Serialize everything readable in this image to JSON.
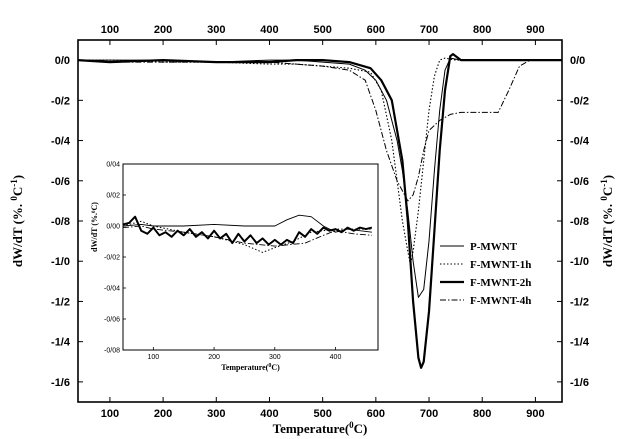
{
  "chart_data": [
    {
      "type": "line",
      "xlabel": "Temperature(",
      "xlabel_sup": "0",
      "xlabel_end": "C)",
      "ylabel": "dW/dT (%. ",
      "ylabel_sup1": "0",
      "ylabel_mid": "C",
      "ylabel_sup2": "-1",
      "ylabel_end": ")",
      "xlim": [
        40,
        950
      ],
      "ylim": [
        -1.7,
        0.1
      ],
      "x_ticks": [
        "100",
        "200",
        "300",
        "400",
        "500",
        "600",
        "700",
        "800",
        "900"
      ],
      "y_ticks": [
        "0/0",
        "-0/2",
        "-0/4",
        "-0/6",
        "-0/8",
        "-1/0",
        "-1/2",
        "-1/4",
        "-1/6"
      ],
      "legend_position": "right",
      "series": [
        {
          "name": "P-MWNT",
          "style": "thin",
          "x": [
            40,
            100,
            200,
            300,
            400,
            450,
            500,
            550,
            580,
            600,
            620,
            640,
            650,
            660,
            670,
            680,
            690,
            700,
            710,
            720,
            730,
            740,
            760,
            800,
            900,
            950
          ],
          "y": [
            0.0,
            0.0,
            0.0,
            -0.01,
            0.0,
            0.0,
            -0.01,
            -0.02,
            -0.05,
            -0.1,
            -0.2,
            -0.4,
            -0.55,
            -0.75,
            -1.0,
            -1.18,
            -1.14,
            -0.9,
            -0.55,
            -0.25,
            -0.05,
            0.01,
            0.0,
            0.0,
            0.0,
            0.0
          ]
        },
        {
          "name": "F-MWNT-1h",
          "style": "dotted",
          "x": [
            40,
            100,
            200,
            300,
            400,
            450,
            500,
            550,
            590,
            610,
            630,
            640,
            650,
            660,
            665,
            670,
            680,
            690,
            700,
            710,
            720,
            730,
            750,
            800,
            900,
            950
          ],
          "y": [
            0.0,
            0.0,
            -0.01,
            -0.01,
            -0.02,
            -0.02,
            -0.03,
            -0.04,
            -0.06,
            -0.15,
            -0.4,
            -0.6,
            -0.8,
            -0.95,
            -1.02,
            -0.95,
            -0.75,
            -0.5,
            -0.25,
            -0.08,
            0.0,
            0.01,
            0.0,
            0.0,
            0.0,
            0.0
          ]
        },
        {
          "name": "F-MWNT-2h",
          "style": "thick",
          "x": [
            40,
            100,
            200,
            300,
            400,
            450,
            500,
            550,
            590,
            610,
            630,
            650,
            660,
            670,
            680,
            685,
            690,
            700,
            710,
            720,
            730,
            740,
            745,
            760,
            800,
            900,
            950
          ],
          "y": [
            0.0,
            -0.01,
            0.0,
            -0.01,
            -0.01,
            0.0,
            0.0,
            -0.01,
            -0.04,
            -0.1,
            -0.2,
            -0.5,
            -0.8,
            -1.2,
            -1.48,
            -1.53,
            -1.5,
            -1.25,
            -0.85,
            -0.45,
            -0.15,
            0.02,
            0.03,
            0.0,
            0.0,
            0.0,
            0.0
          ]
        },
        {
          "name": "F-MWNT-4h",
          "style": "dashdot",
          "x": [
            40,
            100,
            200,
            300,
            400,
            450,
            500,
            550,
            580,
            600,
            620,
            640,
            660,
            670,
            680,
            690,
            700,
            720,
            740,
            760,
            800,
            830,
            850,
            870,
            890,
            910,
            950
          ],
          "y": [
            0.0,
            -0.01,
            -0.01,
            -0.01,
            -0.01,
            -0.02,
            -0.03,
            -0.05,
            -0.1,
            -0.25,
            -0.45,
            -0.6,
            -0.7,
            -0.67,
            -0.58,
            -0.45,
            -0.35,
            -0.3,
            -0.27,
            -0.26,
            -0.26,
            -0.26,
            -0.15,
            -0.03,
            0.0,
            0.0,
            0.0
          ]
        }
      ]
    },
    {
      "type": "line",
      "xlabel": "Temperature(",
      "xlabel_sup": "0",
      "xlabel_end": "C)",
      "ylabel": "dW/dT (%.",
      "ylabel_sup1": "0",
      "ylabel_mid": "C",
      "ylabel_end": ")",
      "xlim": [
        50,
        470
      ],
      "ylim": [
        -0.08,
        0.04
      ],
      "x_ticks": [
        "100",
        "200",
        "300",
        "400"
      ],
      "y_ticks": [
        "0/04",
        "0/02",
        "0/00",
        "-0/02",
        "-0/04",
        "-0/06",
        "-0/08"
      ],
      "series": [
        {
          "style": "thin",
          "x": [
            50,
            80,
            100,
            150,
            200,
            250,
            300,
            320,
            340,
            360,
            380,
            400,
            420,
            440,
            460
          ],
          "y": [
            0.0,
            0.001,
            0.0,
            0.0,
            0.001,
            0.0,
            0.0,
            0.004,
            0.007,
            0.006,
            0.0,
            -0.004,
            -0.002,
            -0.003,
            -0.004
          ]
        },
        {
          "style": "dotted",
          "x": [
            50,
            80,
            100,
            150,
            200,
            250,
            280,
            300,
            330,
            360,
            400,
            440,
            460
          ],
          "y": [
            0.0,
            0.003,
            0.0,
            -0.004,
            -0.007,
            -0.012,
            -0.017,
            -0.014,
            -0.01,
            -0.004,
            -0.002,
            -0.002,
            -0.002
          ]
        },
        {
          "style": "thick",
          "x": [
            50,
            60,
            70,
            80,
            90,
            100,
            110,
            120,
            130,
            140,
            150,
            160,
            170,
            180,
            190,
            200,
            210,
            220,
            230,
            240,
            250,
            260,
            270,
            280,
            290,
            300,
            310,
            320,
            330,
            340,
            350,
            360,
            370,
            380,
            390,
            400,
            410,
            420,
            430,
            440,
            450,
            460
          ],
          "y": [
            0.001,
            0.002,
            0.006,
            -0.003,
            -0.005,
            -0.001,
            -0.006,
            -0.004,
            -0.007,
            -0.003,
            -0.006,
            -0.002,
            -0.007,
            -0.004,
            -0.008,
            -0.003,
            -0.008,
            -0.005,
            -0.011,
            -0.005,
            -0.01,
            -0.006,
            -0.011,
            -0.008,
            -0.012,
            -0.009,
            -0.012,
            -0.009,
            -0.011,
            -0.004,
            -0.007,
            -0.002,
            -0.005,
            -0.001,
            -0.003,
            -0.002,
            -0.004,
            -0.001,
            -0.003,
            -0.001,
            -0.002,
            -0.001
          ]
        },
        {
          "style": "dashdot",
          "x": [
            50,
            80,
            100,
            150,
            200,
            250,
            300,
            350,
            380,
            400,
            430,
            460
          ],
          "y": [
            -0.001,
            0.0,
            -0.002,
            -0.004,
            -0.007,
            -0.011,
            -0.013,
            -0.011,
            -0.006,
            -0.003,
            -0.005,
            -0.006
          ]
        }
      ]
    }
  ]
}
